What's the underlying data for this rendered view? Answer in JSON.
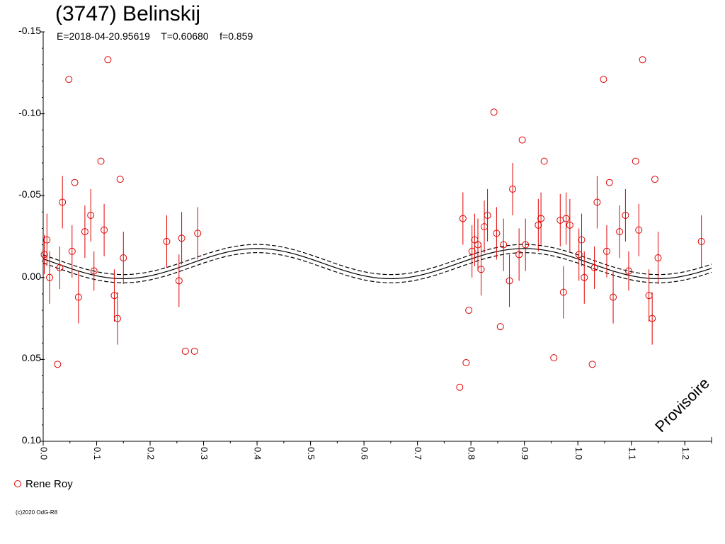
{
  "chart_data": {
    "type": "scatter",
    "title": "(3747) Belinskij",
    "subtitle": "E=2018-04-20.95619    T=0.60680    f=0.859",
    "watermark": "Provisoire",
    "copyright": "(c)2020 OdG-R8",
    "xlim": [
      0.0,
      1.25
    ],
    "ylim": [
      0.1,
      -0.15
    ],
    "y_inverted": true,
    "x_ticks": [
      "0.0",
      "0.1",
      "0.2",
      "0.3",
      "0.4",
      "0.5",
      "0.6",
      "0.7",
      "0.8",
      "0.9",
      "1.0",
      "1.1",
      "1.2"
    ],
    "y_ticks": [
      "-0.15",
      "-0.10",
      "-0.05",
      "0.00",
      "0.05",
      "0.10"
    ],
    "legend": [
      {
        "name": "Rene Roy",
        "color": "#e00000"
      }
    ],
    "marker_color": "#e00000",
    "curve_color": "#000000",
    "fit_curve": {
      "mean": -0.0085,
      "amplitude": 0.0092,
      "uncertainty": 0.0025,
      "period_in_phase": 0.5,
      "peak_phase": 0.4
    },
    "series": [
      {
        "name": "Rene Roy",
        "points": [
          {
            "x": 0.002,
            "y": -0.014,
            "err": 0.012
          },
          {
            "x": 0.007,
            "y": -0.023,
            "err": 0.016
          },
          {
            "x": 0.012,
            "y": 0.0,
            "err": 0.016
          },
          {
            "x": 0.027,
            "y": 0.053,
            "err": 0.0
          },
          {
            "x": 0.031,
            "y": -0.006,
            "err": 0.013
          },
          {
            "x": 0.036,
            "y": -0.046,
            "err": 0.016
          },
          {
            "x": 0.048,
            "y": -0.121,
            "err": 0.0
          },
          {
            "x": 0.054,
            "y": -0.016,
            "err": 0.016
          },
          {
            "x": 0.059,
            "y": -0.058,
            "err": 0.0
          },
          {
            "x": 0.066,
            "y": 0.012,
            "err": 0.016
          },
          {
            "x": 0.078,
            "y": -0.028,
            "err": 0.016
          },
          {
            "x": 0.089,
            "y": -0.038,
            "err": 0.016
          },
          {
            "x": 0.095,
            "y": -0.004,
            "err": 0.012
          },
          {
            "x": 0.108,
            "y": -0.071,
            "err": 0.0
          },
          {
            "x": 0.114,
            "y": -0.029,
            "err": 0.016
          },
          {
            "x": 0.121,
            "y": -0.133,
            "err": 0.0
          },
          {
            "x": 0.133,
            "y": 0.011,
            "err": 0.016
          },
          {
            "x": 0.139,
            "y": 0.025,
            "err": 0.016
          },
          {
            "x": 0.144,
            "y": -0.06,
            "err": 0.0
          },
          {
            "x": 0.15,
            "y": -0.012,
            "err": 0.016
          },
          {
            "x": 0.231,
            "y": -0.022,
            "err": 0.016
          },
          {
            "x": 0.254,
            "y": 0.002,
            "err": 0.016
          },
          {
            "x": 0.259,
            "y": -0.024,
            "err": 0.016
          },
          {
            "x": 0.266,
            "y": 0.045,
            "err": 0.0
          },
          {
            "x": 0.283,
            "y": 0.045,
            "err": 0.0
          },
          {
            "x": 0.289,
            "y": -0.027,
            "err": 0.016
          },
          {
            "x": 0.779,
            "y": 0.067,
            "err": 0.0
          },
          {
            "x": 0.785,
            "y": -0.036,
            "err": 0.016
          },
          {
            "x": 0.791,
            "y": 0.052,
            "err": 0.0
          },
          {
            "x": 0.796,
            "y": 0.02,
            "err": 0.0
          },
          {
            "x": 0.802,
            "y": -0.016,
            "err": 0.016
          },
          {
            "x": 0.807,
            "y": -0.023,
            "err": 0.016
          },
          {
            "x": 0.813,
            "y": -0.02,
            "err": 0.016
          },
          {
            "x": 0.819,
            "y": -0.005,
            "err": 0.016
          },
          {
            "x": 0.825,
            "y": -0.031,
            "err": 0.016
          },
          {
            "x": 0.831,
            "y": -0.038,
            "err": 0.016
          },
          {
            "x": 0.843,
            "y": -0.101,
            "err": 0.0
          },
          {
            "x": 0.848,
            "y": -0.027,
            "err": 0.016
          },
          {
            "x": 0.855,
            "y": 0.03,
            "err": 0.0
          },
          {
            "x": 0.861,
            "y": -0.02,
            "err": 0.016
          },
          {
            "x": 0.872,
            "y": 0.002,
            "err": 0.016
          },
          {
            "x": 0.878,
            "y": -0.054,
            "err": 0.016
          },
          {
            "x": 0.89,
            "y": -0.014,
            "err": 0.016
          },
          {
            "x": 0.896,
            "y": -0.084,
            "err": 0.0
          },
          {
            "x": 0.902,
            "y": -0.02,
            "err": 0.016
          },
          {
            "x": 0.926,
            "y": -0.032,
            "err": 0.016
          },
          {
            "x": 0.931,
            "y": -0.036,
            "err": 0.016
          },
          {
            "x": 0.937,
            "y": -0.071,
            "err": 0.0
          },
          {
            "x": 0.955,
            "y": 0.049,
            "err": 0.0
          },
          {
            "x": 0.967,
            "y": -0.035,
            "err": 0.016
          },
          {
            "x": 0.973,
            "y": 0.009,
            "err": 0.016
          },
          {
            "x": 0.978,
            "y": -0.036,
            "err": 0.016
          },
          {
            "x": 0.985,
            "y": -0.032,
            "err": 0.016
          },
          {
            "x": 1.002,
            "y": -0.014,
            "err": 0.016
          },
          {
            "x": 1.007,
            "y": -0.023,
            "err": 0.016
          },
          {
            "x": 1.012,
            "y": 0.0,
            "err": 0.016
          },
          {
            "x": 1.027,
            "y": 0.053,
            "err": 0.0
          },
          {
            "x": 1.031,
            "y": -0.006,
            "err": 0.013
          },
          {
            "x": 1.036,
            "y": -0.046,
            "err": 0.016
          },
          {
            "x": 1.048,
            "y": -0.121,
            "err": 0.0
          },
          {
            "x": 1.054,
            "y": -0.016,
            "err": 0.016
          },
          {
            "x": 1.059,
            "y": -0.058,
            "err": 0.0
          },
          {
            "x": 1.066,
            "y": 0.012,
            "err": 0.016
          },
          {
            "x": 1.078,
            "y": -0.028,
            "err": 0.016
          },
          {
            "x": 1.089,
            "y": -0.038,
            "err": 0.016
          },
          {
            "x": 1.095,
            "y": -0.004,
            "err": 0.012
          },
          {
            "x": 1.108,
            "y": -0.071,
            "err": 0.0
          },
          {
            "x": 1.114,
            "y": -0.029,
            "err": 0.016
          },
          {
            "x": 1.121,
            "y": -0.133,
            "err": 0.0
          },
          {
            "x": 1.133,
            "y": 0.011,
            "err": 0.016
          },
          {
            "x": 1.139,
            "y": 0.025,
            "err": 0.016
          },
          {
            "x": 1.144,
            "y": -0.06,
            "err": 0.0
          },
          {
            "x": 1.15,
            "y": -0.012,
            "err": 0.016
          },
          {
            "x": 1.231,
            "y": -0.022,
            "err": 0.016
          }
        ]
      }
    ]
  }
}
